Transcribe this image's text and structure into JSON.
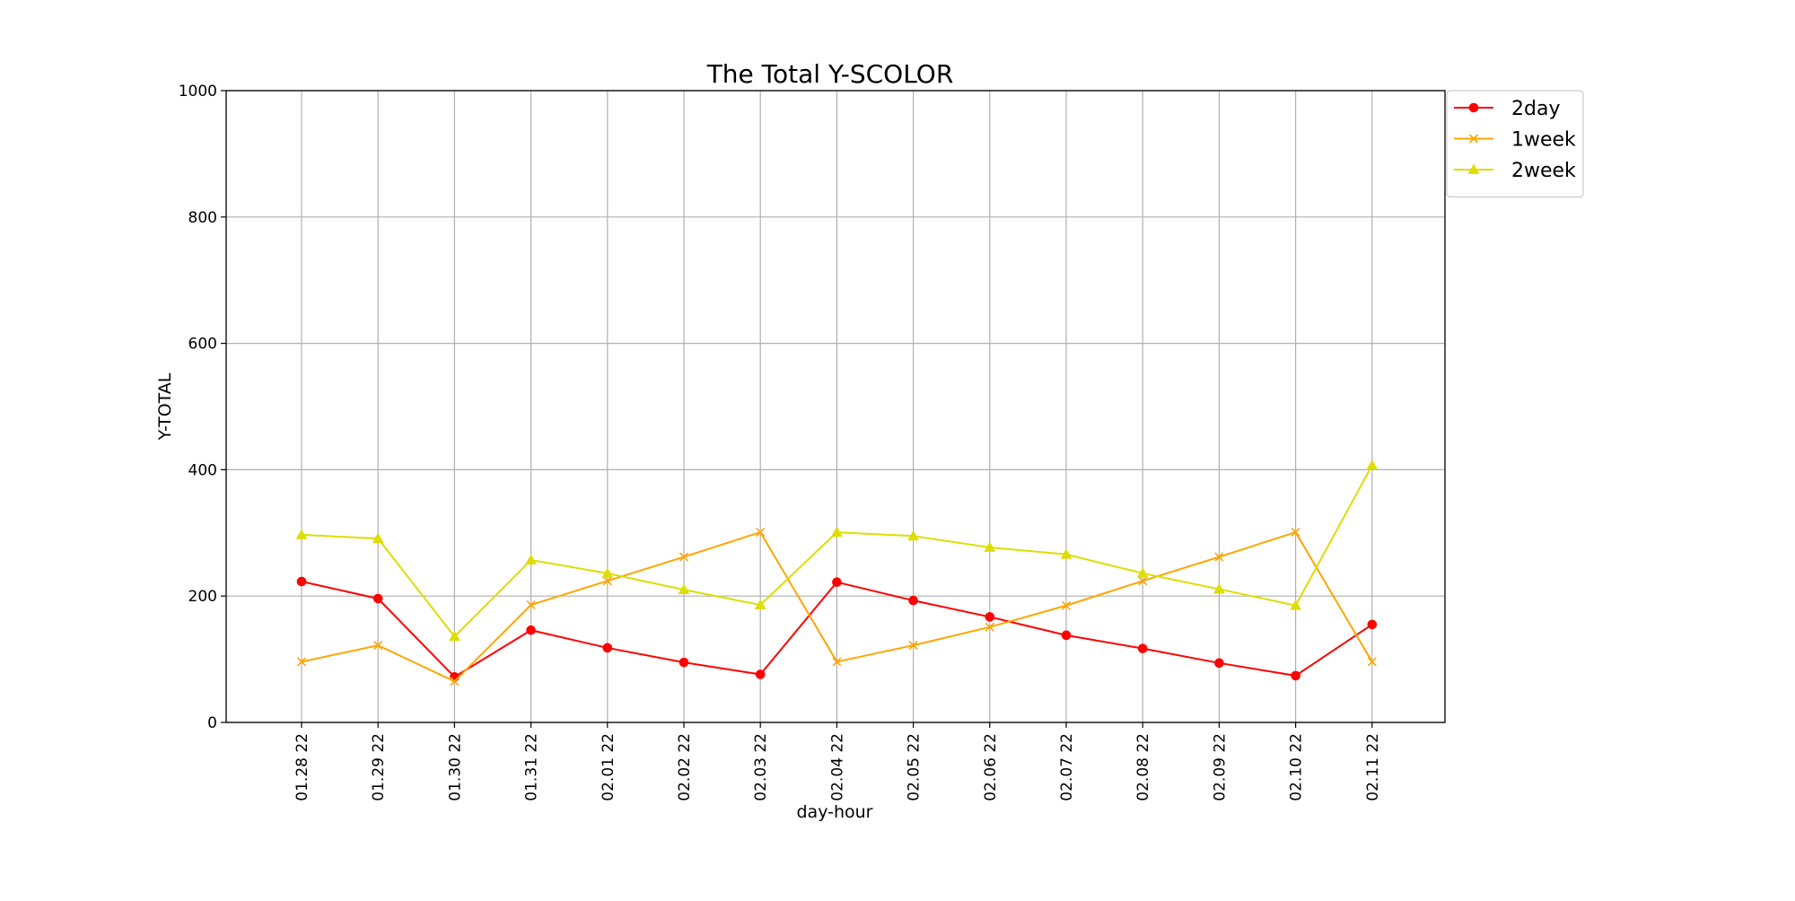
{
  "chart_data": {
    "type": "line",
    "title": "The Total Y-SCOLOR",
    "xlabel": "day-hour",
    "ylabel": "Y-TOTAL",
    "categories": [
      "01.28 22",
      "01.29 22",
      "01.30 22",
      "01.31 22",
      "02.01 22",
      "02.02 22",
      "02.03 22",
      "02.04 22",
      "02.05 22",
      "02.06 22",
      "02.07 22",
      "02.08 22",
      "02.09 22",
      "02.10 22",
      "02.11 22"
    ],
    "ylim": [
      0,
      1000
    ],
    "yticks": [
      0,
      200,
      400,
      600,
      800,
      1000
    ],
    "grid": true,
    "legend_position": "outside-top-right",
    "series": [
      {
        "name": "2day",
        "color": "#ff0000",
        "marker": "circle",
        "values": [
          223,
          196,
          72,
          146,
          118,
          95,
          76,
          222,
          193,
          167,
          138,
          117,
          94,
          74,
          155
        ]
      },
      {
        "name": "1week",
        "color": "#ffa500",
        "marker": "x",
        "values": [
          96,
          122,
          65,
          186,
          224,
          262,
          301,
          96,
          122,
          151,
          185,
          224,
          262,
          301,
          96
        ]
      },
      {
        "name": "2week",
        "color": "#dddd00",
        "marker": "triangle",
        "values": [
          297,
          291,
          136,
          257,
          236,
          210,
          186,
          301,
          295,
          277,
          266,
          236,
          211,
          185,
          407
        ]
      }
    ]
  }
}
